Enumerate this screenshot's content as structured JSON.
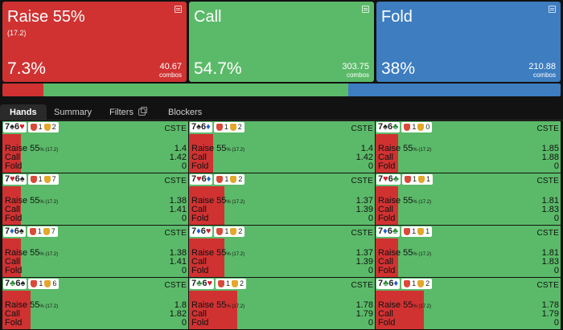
{
  "colors": {
    "raise": "#d03232",
    "call": "#5bba69",
    "fold": "#3d7dc0",
    "background": "#121212"
  },
  "summary": [
    {
      "key": "raise",
      "title": "Raise 55%",
      "sub": "(17.2)",
      "pct": "7.3%",
      "combos": "40.67",
      "combos_label": "combos",
      "icon": "notes-icon"
    },
    {
      "key": "call",
      "title": "Call",
      "sub": "",
      "pct": "54.7%",
      "combos": "303.75",
      "combos_label": "combos",
      "icon": "notes-icon"
    },
    {
      "key": "fold",
      "title": "Fold",
      "sub": "",
      "pct": "38%",
      "combos": "210.88",
      "combos_label": "combos",
      "icon": "notes-icon"
    }
  ],
  "frequency_bar": [
    {
      "action": "raise",
      "fraction": 0.073
    },
    {
      "action": "call",
      "fraction": 0.547
    },
    {
      "action": "fold",
      "fraction": 0.38
    }
  ],
  "tabs": [
    {
      "label": "Hands",
      "active": true
    },
    {
      "label": "Summary",
      "active": false
    },
    {
      "label": "Filters",
      "active": false,
      "icon": "copy-icon"
    },
    {
      "label": "Blockers",
      "active": false
    }
  ],
  "hand_labels": {
    "raise": "Raise 55",
    "raise_suffix": "% (17.2)",
    "call": "Call",
    "fold": "Fold",
    "tag": "CSTE"
  },
  "hands": [
    {
      "r1": "7",
      "s1": "♠",
      "c1": "spade",
      "r2": "6",
      "s2": "♥",
      "c2": "heart",
      "b1": "1",
      "b2": "2",
      "raise": "1.4",
      "call": "1.42",
      "fold": "0",
      "raise_frac": 0.1
    },
    {
      "r1": "7",
      "s1": "♠",
      "c1": "spade",
      "r2": "6",
      "s2": "♦",
      "c2": "diamond",
      "b1": "1",
      "b2": "2",
      "raise": "1.4",
      "call": "1.42",
      "fold": "0",
      "raise_frac": 0.13
    },
    {
      "r1": "7",
      "s1": "♠",
      "c1": "spade",
      "r2": "6",
      "s2": "♣",
      "c2": "club",
      "b1": "1",
      "b2": "0",
      "raise": "1.85",
      "call": "1.88",
      "fold": "0",
      "raise_frac": 0.12
    },
    {
      "r1": "7",
      "s1": "♥",
      "c1": "heart",
      "r2": "6",
      "s2": "♠",
      "c2": "spade",
      "b1": "1",
      "b2": "7",
      "raise": "1.38",
      "call": "1.41",
      "fold": "0",
      "raise_frac": 0.1
    },
    {
      "r1": "7",
      "s1": "♥",
      "c1": "heart",
      "r2": "6",
      "s2": "♦",
      "c2": "diamond",
      "b1": "1",
      "b2": "2",
      "raise": "1.37",
      "call": "1.39",
      "fold": "0",
      "raise_frac": 0.19
    },
    {
      "r1": "7",
      "s1": "♥",
      "c1": "heart",
      "r2": "6",
      "s2": "♣",
      "c2": "club",
      "b1": "1",
      "b2": "1",
      "raise": "1.81",
      "call": "1.83",
      "fold": "0",
      "raise_frac": 0.12
    },
    {
      "r1": "7",
      "s1": "♦",
      "c1": "diamond",
      "r2": "6",
      "s2": "♠",
      "c2": "spade",
      "b1": "1",
      "b2": "7",
      "raise": "1.38",
      "call": "1.41",
      "fold": "0",
      "raise_frac": 0.1
    },
    {
      "r1": "7",
      "s1": "♦",
      "c1": "diamond",
      "r2": "6",
      "s2": "♥",
      "c2": "heart",
      "b1": "1",
      "b2": "2",
      "raise": "1.37",
      "call": "1.39",
      "fold": "0",
      "raise_frac": 0.19
    },
    {
      "r1": "7",
      "s1": "♦",
      "c1": "diamond",
      "r2": "6",
      "s2": "♣",
      "c2": "club",
      "b1": "1",
      "b2": "1",
      "raise": "1.81",
      "call": "1.83",
      "fold": "0",
      "raise_frac": 0.12
    },
    {
      "r1": "7",
      "s1": "♣",
      "c1": "club",
      "r2": "6",
      "s2": "♠",
      "c2": "spade",
      "b1": "1",
      "b2": "6",
      "raise": "1.8",
      "call": "1.82",
      "fold": "0",
      "raise_frac": 0.15
    },
    {
      "r1": "7",
      "s1": "♣",
      "c1": "club",
      "r2": "6",
      "s2": "♥",
      "c2": "heart",
      "b1": "1",
      "b2": "2",
      "raise": "1.78",
      "call": "1.79",
      "fold": "0",
      "raise_frac": 0.26
    },
    {
      "r1": "7",
      "s1": "♣",
      "c1": "club",
      "r2": "6",
      "s2": "♦",
      "c2": "diamond",
      "b1": "1",
      "b2": "2",
      "raise": "1.78",
      "call": "1.79",
      "fold": "0",
      "raise_frac": 0.26
    }
  ]
}
